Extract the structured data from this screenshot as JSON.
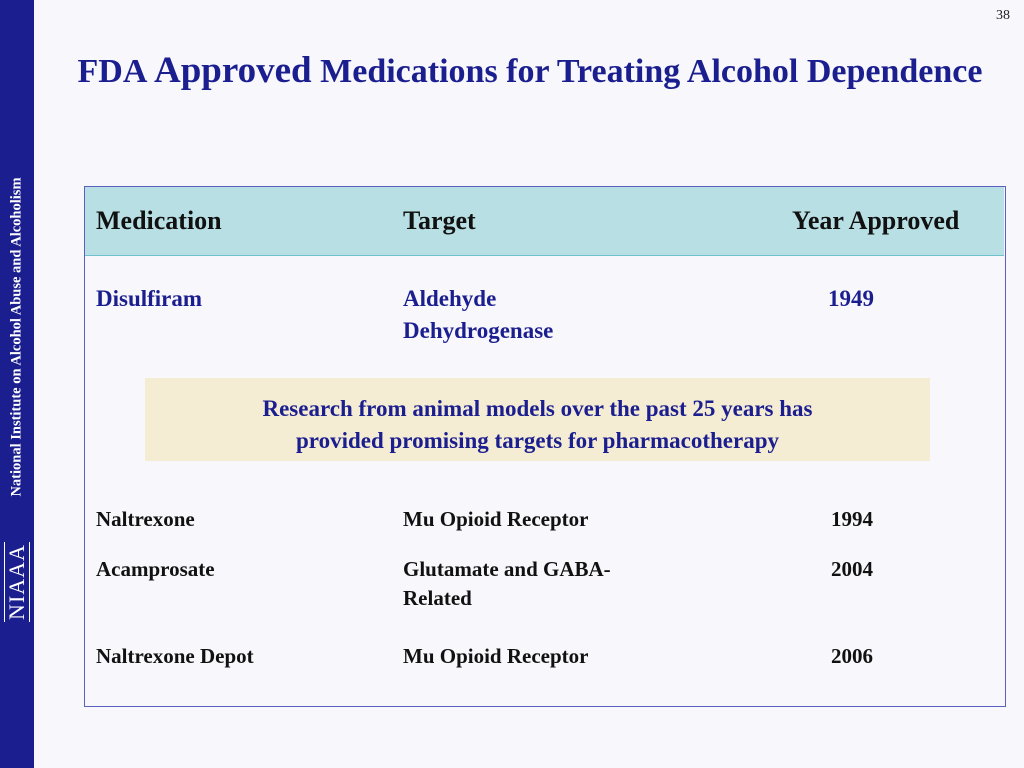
{
  "slide": {
    "number": "38",
    "title_prefix": "FDA",
    "title_emphasis": "Approved",
    "title_rest": "Medications for Treating Alcohol Dependence"
  },
  "sidebar": {
    "org_name": "National Institute on Alcohol Abuse and Alcoholism",
    "logo_text": "NIAAA"
  },
  "table": {
    "headers": [
      "Medication",
      "Target",
      "Year Approved"
    ],
    "rows": [
      {
        "medication": "Disulfiram",
        "target_line1": "Aldehyde",
        "target_line2": "Dehydrogenase",
        "year": "1949"
      },
      {
        "medication": "Naltrexone",
        "target_line1": "Mu Opioid Receptor",
        "target_line2": "",
        "year": "1994"
      },
      {
        "medication": "Acamprosate",
        "target_line1": "Glutamate and GABA-",
        "target_line2": "Related",
        "year": "2004"
      },
      {
        "medication": "Naltrexone Depot",
        "target_line1": "Mu Opioid Receptor",
        "target_line2": "",
        "year": "2006"
      }
    ]
  },
  "callout": {
    "line1": "Research from animal models over the past 25 years has",
    "line2": "provided promising targets for pharmacotherapy"
  },
  "colors": {
    "sidebar": "#1b1e8e",
    "title": "#1b1e8e",
    "header_bg": "#b8e0e4",
    "callout_bg": "#f5ecd4",
    "table_border": "#5b5fc0"
  }
}
